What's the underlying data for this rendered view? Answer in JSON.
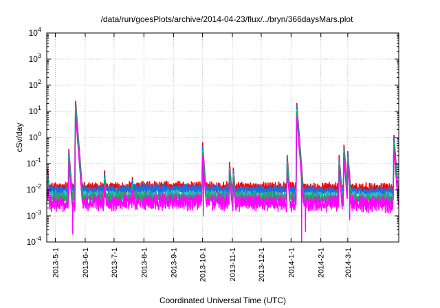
{
  "chart_data": {
    "type": "line",
    "title": "/data/run/goesPlots/archive/2014-04-23/flux/../bryn/366daysMars.plot",
    "xlabel": "Coordinated Universal Time (UTC)",
    "ylabel": "cSv/day",
    "yscale": "log",
    "ylim": [
      0.0001,
      10000
    ],
    "xlim": [
      "2013-04-22",
      "2014-04-23"
    ],
    "grid": true,
    "x_ticks": [
      "2013-5-1",
      "2013-6-1",
      "2013-7-1",
      "2013-8-1",
      "2013-9-1",
      "2013-10-1",
      "2013-11-1",
      "2013-12-1",
      "2014-1-1",
      "2014-2-1",
      "2014-3-1"
    ],
    "y_ticks": [
      {
        "value": 0.0001,
        "base": "10",
        "exp": "-4"
      },
      {
        "value": 0.001,
        "base": "10",
        "exp": "-3"
      },
      {
        "value": 0.01,
        "base": "10",
        "exp": "-2"
      },
      {
        "value": 0.1,
        "base": "10",
        "exp": "-1"
      },
      {
        "value": 1,
        "base": "10",
        "exp": "0"
      },
      {
        "value": 10,
        "base": "10",
        "exp": "1"
      },
      {
        "value": 100,
        "base": "10",
        "exp": "2"
      },
      {
        "value": 1000,
        "base": "10",
        "exp": "3"
      },
      {
        "value": 10000,
        "base": "10",
        "exp": "4"
      }
    ],
    "baseline_series": [
      {
        "color": "#ff0000",
        "values": [
          0.012,
          0.013,
          0.012,
          0.011
        ]
      },
      {
        "color": "#1e6fe0",
        "values": [
          0.009,
          0.01,
          0.009,
          0.008
        ]
      },
      {
        "color": "#2ec8c8",
        "values": [
          0.0055,
          0.006,
          0.0055,
          0.005
        ]
      },
      {
        "color": "#22a85a",
        "values": [
          0.005,
          0.0052,
          0.005,
          0.0045
        ]
      },
      {
        "color": "#ff00ff",
        "values": [
          0.003,
          0.0035,
          0.003,
          0.0028
        ]
      }
    ],
    "events": [
      {
        "x": "2013-04-23",
        "peak": 0.06
      },
      {
        "x": "2013-05-15",
        "peak": 0.35
      },
      {
        "x": "2013-05-22",
        "peak": 25
      },
      {
        "x": "2013-06-21",
        "peak": 0.05
      },
      {
        "x": "2013-07-20",
        "peak": 0.03
      },
      {
        "x": "2013-10-01",
        "peak": 0.6
      },
      {
        "x": "2013-10-29",
        "peak": 0.12
      },
      {
        "x": "2013-11-02",
        "peak": 0.07
      },
      {
        "x": "2013-12-28",
        "peak": 0.2
      },
      {
        "x": "2014-01-07",
        "peak": 20
      },
      {
        "x": "2014-01-10",
        "peak": 0.3
      },
      {
        "x": "2014-02-20",
        "peak": 0.2
      },
      {
        "x": "2014-02-25",
        "peak": 0.55
      },
      {
        "x": "2014-03-01",
        "peak": 0.3
      },
      {
        "x": "2014-04-18",
        "peak": 1.2
      }
    ],
    "magenta_dips": [
      {
        "x": "2013-05-19",
        "value": 0.0002
      },
      {
        "x": "2013-10-02",
        "value": 0.001
      },
      {
        "x": "2014-01-12",
        "value": 0.0001
      },
      {
        "x": "2014-01-16",
        "value": 0.00025
      },
      {
        "x": "2014-03-03",
        "value": 0.0007
      }
    ]
  }
}
